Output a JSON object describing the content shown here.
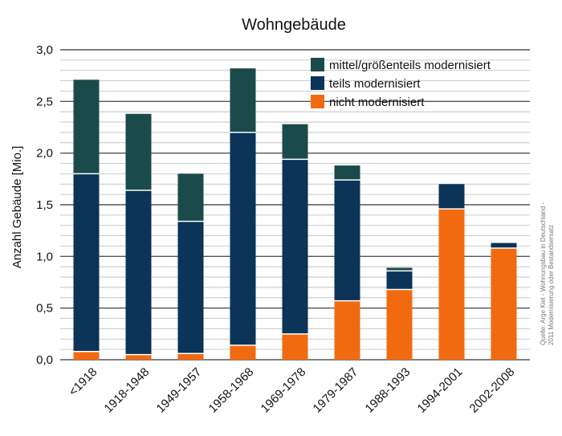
{
  "chart_data": {
    "type": "bar",
    "stacked": true,
    "title": "Wohngebäude",
    "ylabel": "Anzahl Gebäude [Mio.]",
    "xlabel": "",
    "ylim": [
      0,
      3.0
    ],
    "yticks": [
      "0,0",
      "0,5",
      "1,0",
      "1,5",
      "2,0",
      "2,5",
      "3,0"
    ],
    "grid": true,
    "legend_position": "top-right",
    "categories": [
      "<1918",
      "1918-1948",
      "1949-1957",
      "1958-1968",
      "1969-1978",
      "1979-1987",
      "1988-1993",
      "1994-2001",
      "2002-2008"
    ],
    "series": [
      {
        "name": "nicht modernisiert",
        "color": "#f26a10",
        "values": [
          0.08,
          0.05,
          0.06,
          0.14,
          0.25,
          0.57,
          0.68,
          1.46,
          1.08
        ]
      },
      {
        "name": "teils modernisiert",
        "color": "#0c3358",
        "values": [
          1.72,
          1.59,
          1.28,
          2.06,
          1.69,
          1.17,
          0.18,
          0.24,
          0.05
        ]
      },
      {
        "name": "mittel/größenteils modernisiert",
        "color": "#1b4a4a",
        "values": [
          0.91,
          0.74,
          0.46,
          0.62,
          0.34,
          0.14,
          0.03,
          0,
          0
        ]
      }
    ],
    "legend_order": [
      "mittel/größenteils modernisiert",
      "teils modernisiert",
      "nicht modernisiert"
    ],
    "source": [
      "Quelle: Arge Kiel - Wohnungsbau in Deutschland -",
      "2011 Modernisierung oder Bestandsersatz"
    ]
  }
}
